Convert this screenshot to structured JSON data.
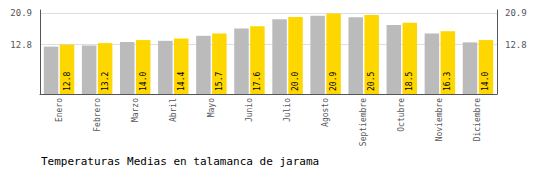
{
  "chart_data": {
    "type": "bar",
    "title": "Temperaturas Medias en talamanca de jarama",
    "categories": [
      "Enero",
      "Febrero",
      "Marzo",
      "Abril",
      "Mayo",
      "Junio",
      "Julio",
      "Agosto",
      "Septiembre",
      "Octubre",
      "Noviembre",
      "Diciembre"
    ],
    "series": [
      {
        "color": "#BBBBBB",
        "values": [
          12.3,
          12.6,
          13.5,
          13.8,
          15.1,
          17.0,
          19.4,
          20.3,
          19.9,
          17.9,
          15.7,
          13.4
        ]
      },
      {
        "color": "#FFD700",
        "values": [
          12.8,
          13.2,
          14.0,
          14.4,
          15.7,
          17.6,
          20.0,
          20.9,
          20.5,
          18.5,
          16.3,
          14.0
        ],
        "data_labels": true,
        "value_labels": [
          "12.8",
          "13.2",
          "14.0",
          "14.4",
          "15.7",
          "17.6",
          "20.0",
          "20.9",
          "20.5",
          "18.5",
          "16.3",
          "14.0"
        ]
      }
    ],
    "ylim": [
      0,
      21.8
    ],
    "yticks": [
      12.8,
      20.9
    ],
    "y2lim": [
      0,
      21.8
    ],
    "y2ticks": [
      12.8,
      20.9
    ],
    "grid": true
  }
}
